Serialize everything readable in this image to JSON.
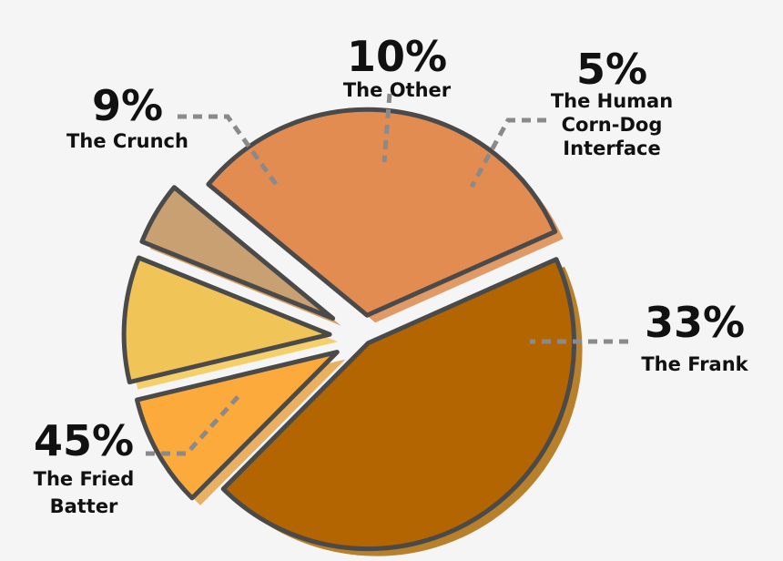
{
  "chart_data": {
    "type": "pie",
    "title": "",
    "slices": [
      {
        "label": [
          "The Fried",
          "Batter"
        ],
        "value": 45,
        "value_label": "45%",
        "color": "#b26500",
        "shadow": "#b8802a"
      },
      {
        "label": [
          "The Crunch"
        ],
        "value": 9,
        "value_label": "9%",
        "color": "#fcaa3c",
        "shadow": "#e8b060"
      },
      {
        "label": [
          "The Other"
        ],
        "value": 10,
        "value_label": "10%",
        "color": "#f0c457",
        "shadow": "#f4cf6a"
      },
      {
        "label": [
          "The Human",
          "Corn-Dog",
          "Interface"
        ],
        "value": 5,
        "value_label": "5%",
        "color": "#c9a071",
        "shadow": "#d4a066"
      },
      {
        "label": [
          "The Frank"
        ],
        "value": 33,
        "value_label": "33%",
        "color": "#e28c52",
        "shadow": "#e09a66"
      }
    ],
    "legend": "none",
    "colors": {
      "background": "#f5f5f5",
      "outline": "#4a4a4a",
      "leader": "#8a8a8a",
      "text": "#111111"
    }
  }
}
